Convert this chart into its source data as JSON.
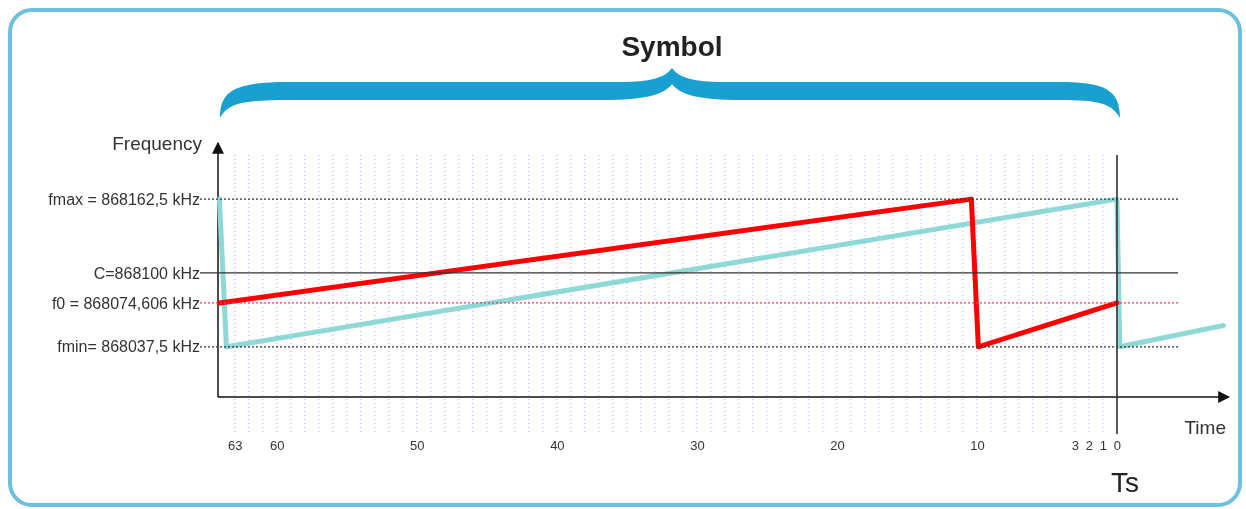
{
  "chart_data": {
    "type": "line",
    "xlabel": "Time",
    "ylabel": "Frequency",
    "annotations": [
      "Symbol"
    ],
    "xlim": [
      64.2,
      -8
    ],
    "ylim": [
      867995,
      868210
    ],
    "xticks": [
      63,
      {
        "value": 62,
        "label": null
      },
      {
        "value": 61,
        "label": null
      },
      60,
      {
        "value": 59,
        "label": null
      },
      {
        "value": 58,
        "label": null
      },
      {
        "value": 57,
        "label": null
      },
      {
        "value": 56,
        "label": null
      },
      {
        "value": 55,
        "label": null
      },
      {
        "value": 54,
        "label": null
      },
      {
        "value": 53,
        "label": null
      },
      {
        "value": 52,
        "label": null
      },
      {
        "value": 51,
        "label": null
      },
      50,
      {
        "value": 49,
        "label": null
      },
      {
        "value": 48,
        "label": null
      },
      {
        "value": 47,
        "label": null
      },
      {
        "value": 46,
        "label": null
      },
      {
        "value": 45,
        "label": null
      },
      {
        "value": 44,
        "label": null
      },
      {
        "value": 43,
        "label": null
      },
      {
        "value": 42,
        "label": null
      },
      {
        "value": 41,
        "label": null
      },
      40,
      {
        "value": 39,
        "label": null
      },
      {
        "value": 38,
        "label": null
      },
      {
        "value": 37,
        "label": null
      },
      {
        "value": 36,
        "label": null
      },
      {
        "value": 35,
        "label": null
      },
      {
        "value": 34,
        "label": null
      },
      {
        "value": 33,
        "label": null
      },
      {
        "value": 32,
        "label": null
      },
      {
        "value": 31,
        "label": null
      },
      30,
      {
        "value": 29,
        "label": null
      },
      {
        "value": 28,
        "label": null
      },
      {
        "value": 27,
        "label": null
      },
      {
        "value": 26,
        "label": null
      },
      {
        "value": 25,
        "label": null
      },
      {
        "value": 24,
        "label": null
      },
      {
        "value": 23,
        "label": null
      },
      {
        "value": 22,
        "label": null
      },
      {
        "value": 21,
        "label": null
      },
      20,
      {
        "value": 19,
        "label": null
      },
      {
        "value": 18,
        "label": null
      },
      {
        "value": 17,
        "label": null
      },
      {
        "value": 16,
        "label": null
      },
      {
        "value": 15,
        "label": null
      },
      {
        "value": 14,
        "label": null
      },
      {
        "value": 13,
        "label": null
      },
      {
        "value": 12,
        "label": null
      },
      {
        "value": 11,
        "label": null
      },
      10,
      {
        "value": 9,
        "label": null
      },
      {
        "value": 8,
        "label": null
      },
      {
        "value": 7,
        "label": null
      },
      {
        "value": 6,
        "label": null
      },
      {
        "value": 5,
        "label": null
      },
      {
        "value": 4,
        "label": null
      },
      3,
      2,
      1,
      0
    ],
    "yticks": [
      {
        "value": 868162.5,
        "label": "fmax = 868162,5 kHz"
      },
      {
        "value": 868100,
        "label": "C=868100 kHz"
      },
      {
        "value": 868074.606,
        "label": "f0 = 868074,606 kHz"
      },
      {
        "value": 868037.5,
        "label": "fmin= 868037,5 kHz"
      }
    ],
    "grid": "x",
    "line_style": "solid",
    "ref_lines": [
      {
        "axis": "y",
        "value": 868162.5,
        "color": "#333333",
        "line_style": "dotted"
      },
      {
        "axis": "y",
        "value": 868100,
        "color": "#333333",
        "line_style": "solid"
      },
      {
        "axis": "y",
        "value": 868074.606,
        "color": "#e0406a",
        "line_style": "dotted"
      },
      {
        "axis": "y",
        "value": 868037.5,
        "color": "#333333",
        "line_style": "dotted"
      },
      {
        "axis": "x",
        "value": 0,
        "label": "Ts",
        "color": "#333333",
        "line_style": "solid"
      }
    ],
    "series": [
      {
        "color": "#8fd8d8",
        "x": [
          64.1,
          63.6,
          0,
          -0.2,
          -7.6
        ],
        "values": [
          868162.5,
          868037.5,
          868162.5,
          868037.5,
          868055.5
        ]
      },
      {
        "color": "#ff0000",
        "x": [
          64.1,
          10.4,
          9.9,
          0
        ],
        "values": [
          868074.606,
          868162.5,
          868037.5,
          868074.606
        ]
      }
    ]
  }
}
